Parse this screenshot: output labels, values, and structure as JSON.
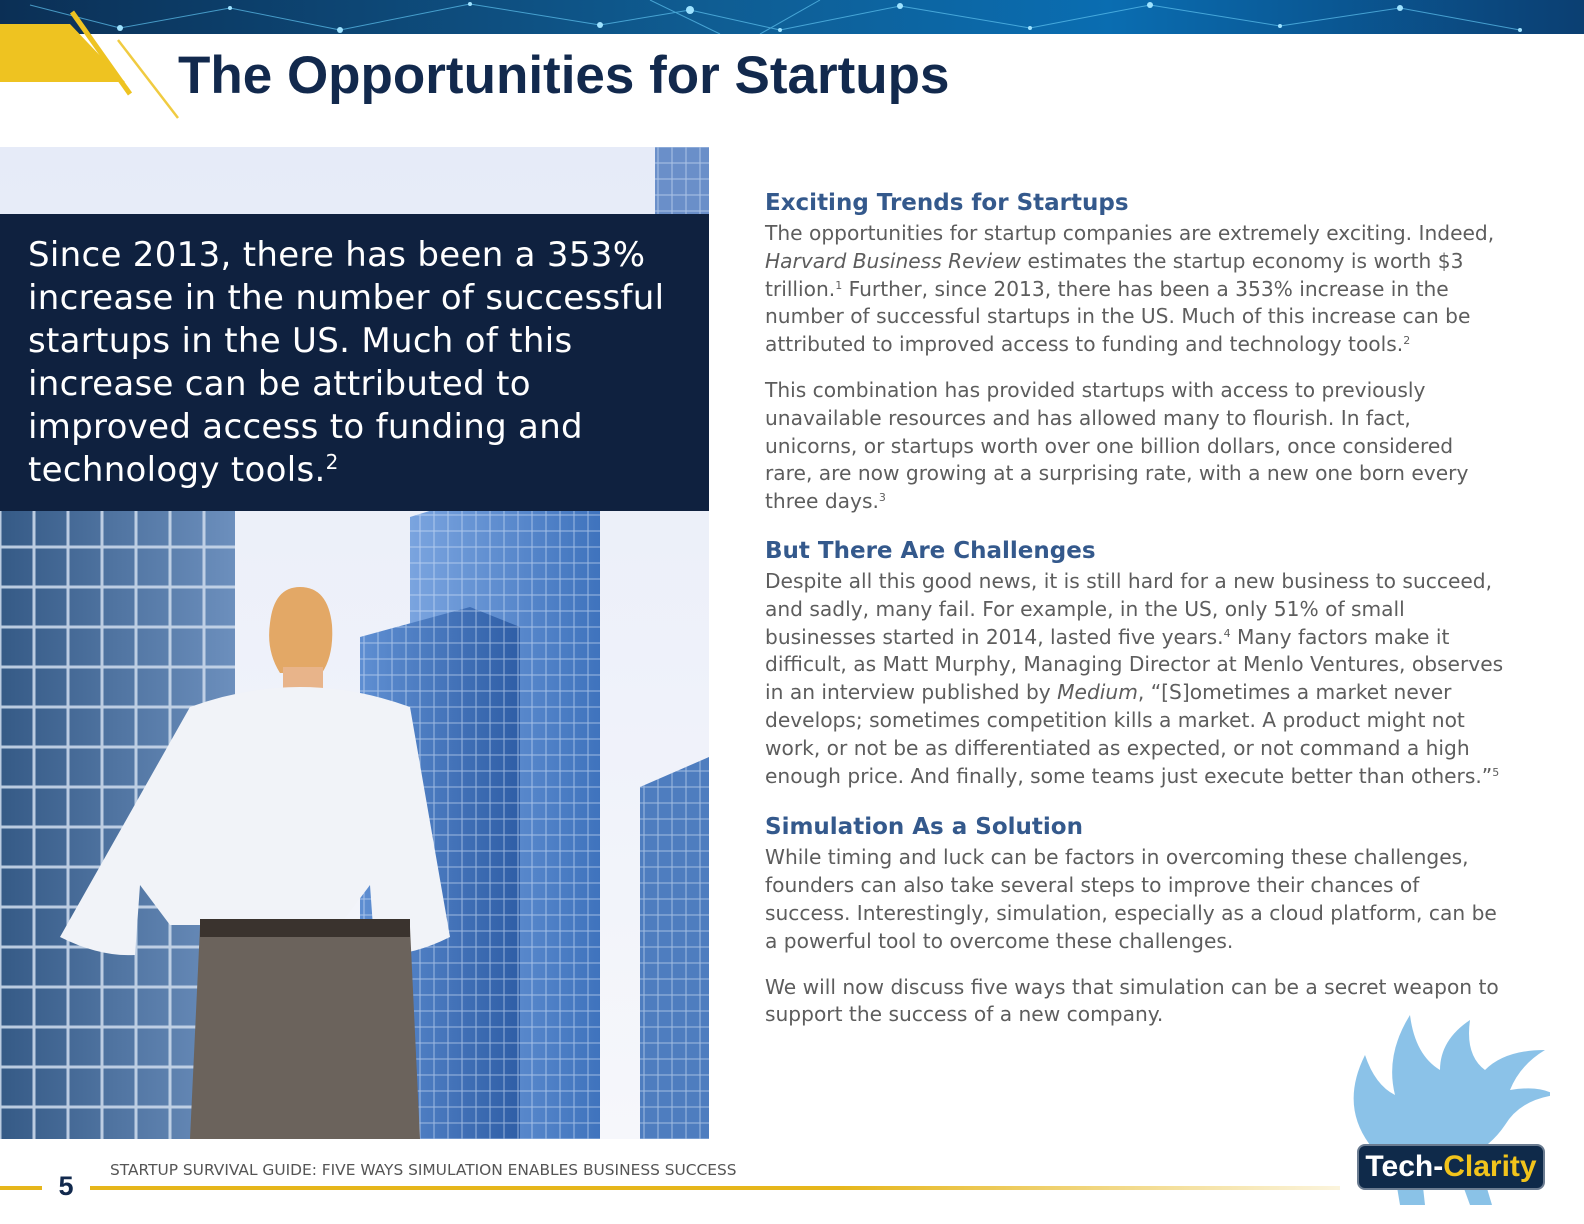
{
  "page_title": "The Opportunities for Startups",
  "quote": {
    "text": "Since 2013, there has been a 353% increase in the number of successful startups in the US. Much of this increase can be attributed to improved access to funding and technology tools.",
    "footnote": "2"
  },
  "sections": [
    {
      "heading": "Exciting Trends for Startups",
      "paragraphs": [
        {
          "p1_a": "The opportunities for startup companies are extremely exciting. Indeed, ",
          "p1_italic": "Harvard Business Review",
          "p1_b": " estimates the startup economy is worth $3 trillion.",
          "p1_fn1": "1",
          "p1_c": " Further, since 2013, there has been a 353% increase in the number of successful startups in the US. Much of this increase can be attributed to improved access to funding and technology tools.",
          "p1_fn2": "2"
        },
        {
          "p2_a": "This combination has provided startups with access to previously unavailable resources and has allowed many to flourish. In fact, unicorns, or startups worth over one billion dollars, once considered rare, are now growing at a surprising rate, with a new one born every three days.",
          "p2_fn": "3"
        }
      ]
    },
    {
      "heading": "But There Are Challenges",
      "paragraphs": [
        {
          "p3_a": "Despite all this good news, it is still hard for a new business to succeed, and sadly, many fail. For example, in the US, only 51% of small businesses started in 2014, lasted five years.",
          "p3_fn1": "4",
          "p3_b": " Many factors make it difficult, as Matt Murphy, Managing Director at Menlo Ventures, observes in an interview published by ",
          "p3_italic": "Medium",
          "p3_c": ", “[S]ometimes a market never develops; sometimes competition kills a market. A product might not work, or not be as differentiated as expected, or not command a high enough price. And finally, some teams just execute better than others.”",
          "p3_fn2": "5"
        }
      ]
    },
    {
      "heading": "Simulation As a Solution",
      "paragraphs": [
        {
          "p4": "While timing and luck can be factors in overcoming these challenges, founders can also take several steps to improve their chances of success. Interestingly, simulation, especially as a cloud platform, can be a powerful tool to overcome these challenges."
        },
        {
          "p5": "We will now discuss five ways that simulation can be a secret weapon to support the success of a new company."
        }
      ]
    }
  ],
  "brand": {
    "tech": "Tech-",
    "clarity": "Clarity"
  },
  "footer": {
    "page_number": "5",
    "title": "STARTUP SURVIVAL GUIDE: FIVE WAYS SIMULATION ENABLES BUSINESS SUCCESS"
  },
  "colors": {
    "title_navy": "#12294d",
    "heading_blue": "#34598c",
    "body_gray": "#5d5d5d",
    "quote_box": "#0f213f",
    "accent_gold": "#e6b61b"
  }
}
